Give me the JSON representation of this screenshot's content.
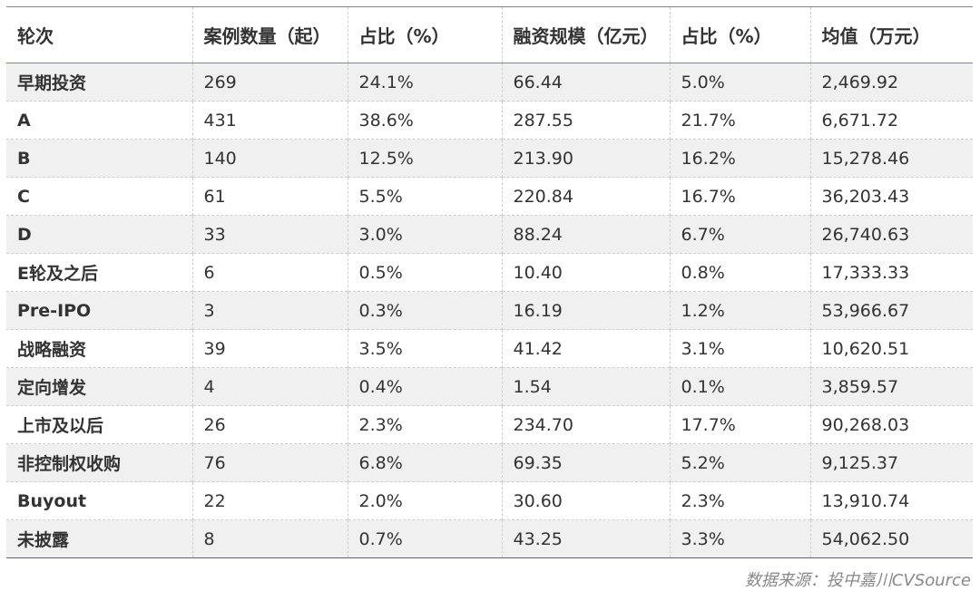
{
  "table": {
    "headers": [
      "轮次",
      "案例数量（起）",
      "占比（%）",
      "融资规模（亿元）",
      "占比（%）",
      "均值（万元）"
    ],
    "rows": [
      [
        "早期投资",
        "269",
        "24.1%",
        "66.44",
        "5.0%",
        "2,469.92"
      ],
      [
        "A",
        "431",
        "38.6%",
        "287.55",
        "21.7%",
        "6,671.72"
      ],
      [
        "B",
        "140",
        "12.5%",
        "213.90",
        "16.2%",
        "15,278.46"
      ],
      [
        "C",
        "61",
        "5.5%",
        "220.84",
        "16.7%",
        "36,203.43"
      ],
      [
        "D",
        "33",
        "3.0%",
        "88.24",
        "6.7%",
        "26,740.63"
      ],
      [
        "E轮及之后",
        "6",
        "0.5%",
        "10.40",
        "0.8%",
        "17,333.33"
      ],
      [
        "Pre-IPO",
        "3",
        "0.3%",
        "16.19",
        "1.2%",
        "53,966.67"
      ],
      [
        "战略融资",
        "39",
        "3.5%",
        "41.42",
        "3.1%",
        "10,620.51"
      ],
      [
        "定向增发",
        "4",
        "0.4%",
        "1.54",
        "0.1%",
        "3,859.57"
      ],
      [
        "上市及以后",
        "26",
        "2.3%",
        "234.70",
        "17.7%",
        "90,268.03"
      ],
      [
        "非控制权收购",
        "76",
        "6.8%",
        "69.35",
        "5.2%",
        "9,125.37"
      ],
      [
        "Buyout",
        "22",
        "2.0%",
        "30.60",
        "2.3%",
        "13,910.74"
      ],
      [
        "未披露",
        "8",
        "0.7%",
        "43.25",
        "3.3%",
        "54,062.50"
      ]
    ]
  },
  "source": "数据来源：投中嘉川CVSource",
  "colors": {
    "header_rule": "#7a80c8",
    "stripe": "#f0f0f0"
  }
}
